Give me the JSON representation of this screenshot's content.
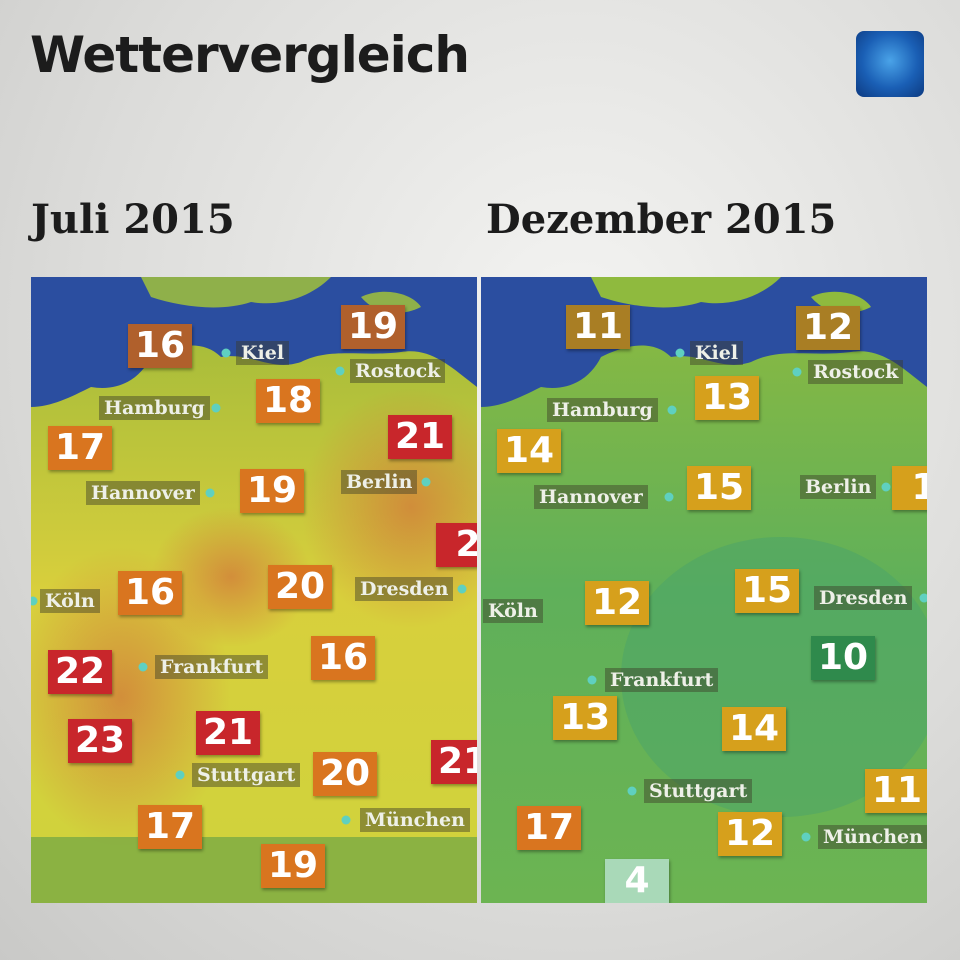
{
  "header": {
    "title": "Wettervergleich"
  },
  "panels": [
    {
      "title": "Juli 2015",
      "cities": [
        {
          "name": "Kiel"
        },
        {
          "name": "Rostock"
        },
        {
          "name": "Hamburg"
        },
        {
          "name": "Hannover"
        },
        {
          "name": "Berlin"
        },
        {
          "name": "Dresden"
        },
        {
          "name": "Köln"
        },
        {
          "name": "Frankfurt"
        },
        {
          "name": "Stuttgart"
        },
        {
          "name": "München"
        }
      ],
      "temperatures": [
        "16",
        "19",
        "18",
        "21",
        "17",
        "19",
        "2",
        "16",
        "20",
        "16",
        "22",
        "23",
        "21",
        "20",
        "21",
        "17",
        "19"
      ]
    },
    {
      "title": "Dezember 2015",
      "cities": [
        {
          "name": "Kiel"
        },
        {
          "name": "Rostock"
        },
        {
          "name": "Hamburg"
        },
        {
          "name": "Hannover"
        },
        {
          "name": "Berlin"
        },
        {
          "name": "Dresden"
        },
        {
          "name": "Köln"
        },
        {
          "name": "Frankfurt"
        },
        {
          "name": "Stuttgart"
        },
        {
          "name": "München"
        }
      ],
      "temperatures": [
        "11",
        "12",
        "13",
        "14",
        "15",
        "1",
        "12",
        "15",
        "10",
        "13",
        "14",
        "11",
        "17",
        "12",
        "4"
      ]
    }
  ]
}
